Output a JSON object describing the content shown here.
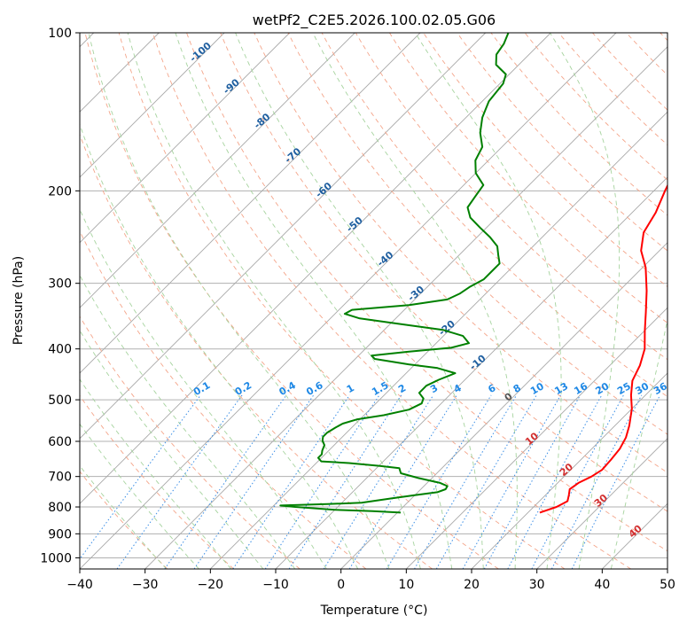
{
  "chart_data": {
    "type": "skew-t",
    "title": "wetPf2_C2E5.2026.100.02.05.G06",
    "xlabel": "Temperature (°C)",
    "ylabel": "Pressure (hPa)",
    "xlim": [
      -40,
      50
    ],
    "ylim": [
      1050,
      100
    ],
    "x_ticks": [
      -40,
      -30,
      -20,
      -10,
      0,
      10,
      20,
      30,
      40,
      50
    ],
    "y_ticks": [
      100,
      200,
      300,
      400,
      500,
      600,
      700,
      800,
      900,
      1000
    ],
    "mixing_ratio_labels": [
      "0.1",
      "0.2",
      "0.4",
      "0.6",
      "1",
      "1.5",
      "2",
      "3",
      "4",
      "6",
      "8",
      "10",
      "13",
      "16",
      "20",
      "25",
      "30",
      "36"
    ],
    "dry_adiabat_labels": [
      "-100",
      "-90",
      "-80",
      "-70",
      "-60",
      "-50",
      "-40",
      "-30",
      "-20",
      "-10",
      "0"
    ],
    "moist_adiabat_labels": [
      "10",
      "20",
      "30",
      "40"
    ],
    "series": [
      {
        "name": "temperature",
        "color": "#ff0000",
        "points": [
          [
            820,
            21.8
          ],
          [
            800,
            23.5
          ],
          [
            780,
            24.3
          ],
          [
            760,
            23.6
          ],
          [
            740,
            22.8
          ],
          [
            720,
            23.2
          ],
          [
            700,
            24.2
          ],
          [
            680,
            24.8
          ],
          [
            650,
            24.6
          ],
          [
            620,
            24.3
          ],
          [
            590,
            23.5
          ],
          [
            560,
            22.2
          ],
          [
            520,
            20.0
          ],
          [
            490,
            17.8
          ],
          [
            460,
            15.8
          ],
          [
            430,
            14.6
          ],
          [
            400,
            12.8
          ],
          [
            370,
            10.1
          ],
          [
            340,
            7.3
          ],
          [
            310,
            4.2
          ],
          [
            280,
            0.5
          ],
          [
            260,
            -2.8
          ],
          [
            240,
            -5.2
          ],
          [
            220,
            -6.4
          ],
          [
            200,
            -8.3
          ],
          [
            190,
            -9.2
          ],
          [
            180,
            -9.7
          ],
          [
            170,
            -10.3
          ],
          [
            160,
            -12.1
          ],
          [
            150,
            -14.2
          ],
          [
            140,
            -16.3
          ],
          [
            130,
            -18.8
          ],
          [
            120,
            -20.2
          ],
          [
            115,
            -19.8
          ],
          [
            110,
            -19.4
          ],
          [
            105,
            -20.5
          ],
          [
            100,
            -22.2
          ]
        ]
      },
      {
        "name": "dewpoint",
        "color": "#008000",
        "points": [
          [
            820,
            0.5
          ],
          [
            815,
            -4.0
          ],
          [
            810,
            -10.0
          ],
          [
            800,
            -16.5
          ],
          [
            795,
            -19.0
          ],
          [
            790,
            -12.0
          ],
          [
            785,
            -7.0
          ],
          [
            770,
            -3.0
          ],
          [
            760,
            0.0
          ],
          [
            750,
            3.0
          ],
          [
            740,
            3.8
          ],
          [
            730,
            3.6
          ],
          [
            720,
            2.0
          ],
          [
            705,
            -2.0
          ],
          [
            690,
            -5.5
          ],
          [
            675,
            -6.5
          ],
          [
            668,
            -10.0
          ],
          [
            660,
            -15.0
          ],
          [
            655,
            -19.5
          ],
          [
            645,
            -20.5
          ],
          [
            635,
            -20.5
          ],
          [
            625,
            -21.0
          ],
          [
            610,
            -21.5
          ],
          [
            598,
            -22.5
          ],
          [
            588,
            -23.0
          ],
          [
            578,
            -23.0
          ],
          [
            565,
            -22.5
          ],
          [
            555,
            -22.0
          ],
          [
            545,
            -20.5
          ],
          [
            535,
            -17.0
          ],
          [
            522,
            -14.0
          ],
          [
            508,
            -13.0
          ],
          [
            497,
            -13.5
          ],
          [
            485,
            -15.0
          ],
          [
            470,
            -15.0
          ],
          [
            458,
            -14.0
          ],
          [
            445,
            -12.5
          ],
          [
            435,
            -16.0
          ],
          [
            428,
            -21.0
          ],
          [
            418,
            -27.0
          ],
          [
            412,
            -28.0
          ],
          [
            405,
            -23.0
          ],
          [
            398,
            -17.0
          ],
          [
            390,
            -15.0
          ],
          [
            378,
            -17.0
          ],
          [
            368,
            -21.0
          ],
          [
            358,
            -29.0
          ],
          [
            350,
            -35.5
          ],
          [
            343,
            -38.5
          ],
          [
            337,
            -38.0
          ],
          [
            330,
            -30.0
          ],
          [
            322,
            -25.0
          ],
          [
            314,
            -24.0
          ],
          [
            305,
            -23.5
          ],
          [
            295,
            -22.5
          ],
          [
            285,
            -22.5
          ],
          [
            275,
            -22.5
          ],
          [
            265,
            -24.0
          ],
          [
            255,
            -25.5
          ],
          [
            245,
            -28.0
          ],
          [
            235,
            -31.0
          ],
          [
            225,
            -34.0
          ],
          [
            215,
            -36.0
          ],
          [
            205,
            -36.5
          ],
          [
            195,
            -37.0
          ],
          [
            185,
            -40.0
          ],
          [
            175,
            -42.0
          ],
          [
            165,
            -43.0
          ],
          [
            155,
            -45.5
          ],
          [
            145,
            -47.5
          ],
          [
            135,
            -49.0
          ],
          [
            125,
            -49.5
          ],
          [
            120,
            -50.5
          ],
          [
            115,
            -53.5
          ],
          [
            110,
            -55.0
          ],
          [
            105,
            -55.5
          ],
          [
            100,
            -56.5
          ]
        ]
      }
    ]
  }
}
